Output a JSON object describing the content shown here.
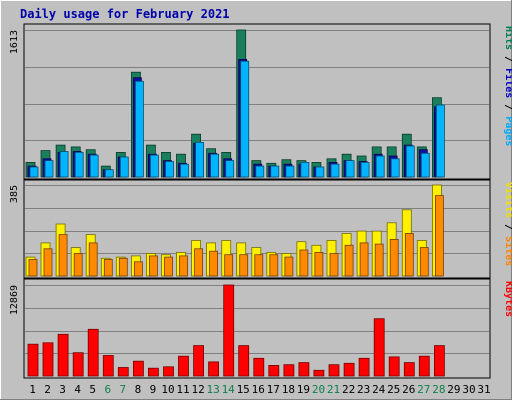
{
  "chart_data": {
    "type": "bar",
    "title": "Daily usage for February 2021",
    "categories": [
      "1",
      "2",
      "3",
      "4",
      "5",
      "6",
      "7",
      "8",
      "9",
      "10",
      "11",
      "12",
      "13",
      "14",
      "15",
      "16",
      "17",
      "18",
      "19",
      "20",
      "21",
      "22",
      "23",
      "24",
      "25",
      "26",
      "27",
      "28",
      "29",
      "30",
      "31"
    ],
    "weekend_days": [
      "6",
      "7",
      "13",
      "14",
      "20",
      "21",
      "27",
      "28"
    ],
    "panels": [
      {
        "id": "pages_files_hits",
        "max_label": "1613",
        "ylim": [
          0,
          1613
        ],
        "right_labels": [
          "Pages",
          "Files",
          "Hits"
        ],
        "right_label_colors": [
          "#00AAFF",
          "#0000CC",
          "#007F4F"
        ],
        "series": [
          {
            "name": "Hits",
            "color": "#1A7F5C",
            "values": [
              160,
              290,
              350,
              330,
              300,
              120,
              270,
              1150,
              350,
              270,
              250,
              470,
              310,
              270,
              1613,
              180,
              150,
              190,
              180,
              160,
              200,
              250,
              230,
              330,
              330,
              470,
              330,
              870
            ]
          },
          {
            "name": "Files",
            "color": "#1010A0",
            "values": [
              120,
              200,
              270,
              280,
              250,
              80,
              220,
              1090,
              250,
              180,
              150,
              370,
              260,
              200,
              1290,
              140,
              120,
              140,
              140,
              110,
              160,
              180,
              170,
              250,
              230,
              350,
              300,
              770
            ]
          },
          {
            "name": "Pages",
            "color": "#00B4FF",
            "values": [
              110,
              180,
              280,
              270,
              240,
              80,
              220,
              1050,
              240,
              170,
              140,
              380,
              250,
              180,
              1270,
              120,
              120,
              120,
              160,
              110,
              140,
              180,
              160,
              230,
              200,
              340,
              260,
              790
            ]
          }
        ]
      },
      {
        "id": "visits_sites",
        "max_label": "385",
        "ylim": [
          0,
          385
        ],
        "right_labels": [
          "Sites",
          "Visits"
        ],
        "right_label_colors": [
          "#FF8000",
          "#F0E000"
        ],
        "series": [
          {
            "name": "Visits",
            "color": "#FFF000",
            "values": [
              80,
              140,
              220,
              120,
              175,
              75,
              80,
              85,
              95,
              90,
              100,
              150,
              140,
              150,
              140,
              120,
              100,
              95,
              145,
              130,
              150,
              180,
              190,
              190,
              225,
              280,
              150,
              385
            ]
          },
          {
            "name": "Sites",
            "color": "#FF8A00",
            "values": [
              70,
              115,
              175,
              95,
              140,
              70,
              75,
              60,
              85,
              80,
              85,
              115,
              105,
              90,
              90,
              90,
              90,
              80,
              110,
              100,
              95,
              130,
              140,
              135,
              155,
              180,
              120,
              340
            ]
          }
        ]
      },
      {
        "id": "kbytes",
        "max_label": "12869",
        "ylim": [
          0,
          12869
        ],
        "right_labels": [
          "KBytes"
        ],
        "right_label_colors": [
          "#FF0000"
        ],
        "series": [
          {
            "name": "KBytes",
            "color": "#FF0000",
            "values": [
              4500,
              4700,
              5900,
              3300,
              6600,
              2900,
              1200,
              2100,
              1100,
              1300,
              2800,
              4300,
              2000,
              12869,
              4300,
              2500,
              1500,
              1600,
              1900,
              800,
              1600,
              1800,
              2500,
              8100,
              2700,
              1900,
              2800,
              4300
            ]
          }
        ]
      }
    ]
  }
}
